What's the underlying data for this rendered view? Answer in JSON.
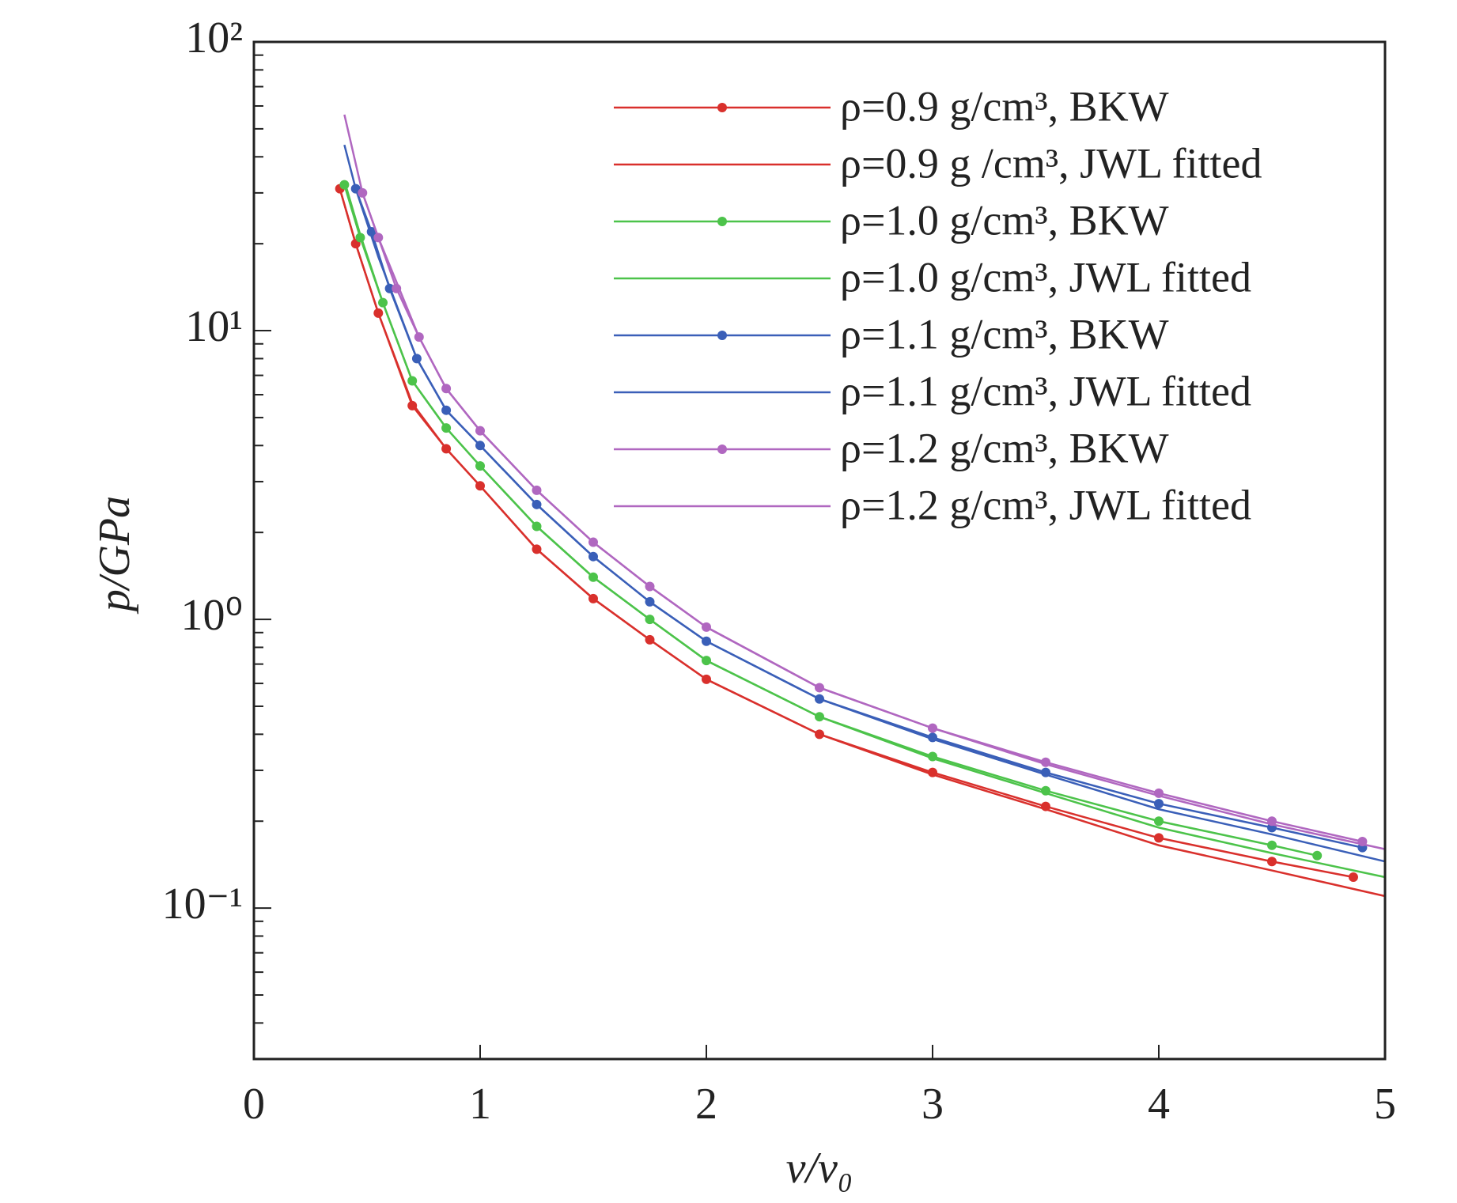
{
  "chart_data": {
    "type": "line",
    "xlabel": "v/v₀",
    "ylabel": "p/GPa",
    "xlim": [
      0,
      5
    ],
    "xticks": [
      0,
      1,
      2,
      3,
      4,
      5
    ],
    "ylim": [
      0.03,
      100
    ],
    "ylog": true,
    "yticks": [
      {
        "value": 0.1,
        "label": "10⁻¹"
      },
      {
        "value": 1,
        "label": "10⁰"
      },
      {
        "value": 10,
        "label": "10¹"
      },
      {
        "value": 100,
        "label": "10²"
      }
    ],
    "yminorticks": [
      0.04,
      0.05,
      0.06,
      0.07,
      0.08,
      0.09,
      0.2,
      0.3,
      0.4,
      0.5,
      0.6,
      0.7,
      0.8,
      0.9,
      2,
      3,
      4,
      5,
      6,
      7,
      8,
      9,
      20,
      30,
      40,
      50,
      60,
      70,
      80,
      90
    ],
    "legend": "upper right",
    "series": [
      {
        "name": "ρ=0.9 g/cm³, BKW",
        "color": "#d9302c",
        "marker": true,
        "x": [
          0.38,
          0.45,
          0.55,
          0.7,
          0.85,
          1,
          1.25,
          1.5,
          1.75,
          2,
          2.5,
          3,
          3.5,
          4,
          4.5,
          4.86
        ],
        "values": [
          31,
          20,
          11.5,
          5.5,
          3.9,
          2.9,
          1.75,
          1.18,
          0.85,
          0.62,
          0.4,
          0.295,
          0.225,
          0.175,
          0.145,
          0.128
        ]
      },
      {
        "name": "ρ=0.9 g /cm³, JWL fitted",
        "color": "#d9302c",
        "marker": false,
        "x": [
          0.38,
          0.45,
          0.55,
          0.7,
          0.85,
          1,
          1.25,
          1.5,
          1.75,
          2,
          2.5,
          3,
          3.5,
          4,
          4.5,
          5
        ],
        "values": [
          31,
          20,
          11.5,
          5.6,
          3.9,
          2.9,
          1.75,
          1.18,
          0.85,
          0.62,
          0.4,
          0.29,
          0.22,
          0.165,
          0.135,
          0.11
        ]
      },
      {
        "name": "ρ=1.0 g/cm³, BKW",
        "color": "#4cc34a",
        "marker": true,
        "x": [
          0.4,
          0.47,
          0.57,
          0.7,
          0.85,
          1,
          1.25,
          1.5,
          1.75,
          2,
          2.5,
          3,
          3.5,
          4,
          4.5,
          4.7
        ],
        "values": [
          32,
          21,
          12.5,
          6.7,
          4.6,
          3.4,
          2.1,
          1.4,
          1.0,
          0.72,
          0.46,
          0.335,
          0.255,
          0.2,
          0.165,
          0.152
        ]
      },
      {
        "name": "ρ=1.0 g/cm³, JWL fitted",
        "color": "#4cc34a",
        "marker": false,
        "x": [
          0.4,
          0.47,
          0.57,
          0.7,
          0.85,
          1,
          1.25,
          1.5,
          1.75,
          2,
          2.5,
          3,
          3.5,
          4,
          4.5,
          5
        ],
        "values": [
          33,
          21.5,
          12.5,
          6.7,
          4.6,
          3.4,
          2.1,
          1.4,
          1.0,
          0.72,
          0.46,
          0.33,
          0.25,
          0.19,
          0.155,
          0.128
        ]
      },
      {
        "name": "ρ=1.1 g/cm³, BKW",
        "color": "#3a5fb8",
        "marker": true,
        "x": [
          0.45,
          0.52,
          0.6,
          0.72,
          0.85,
          1,
          1.25,
          1.5,
          1.75,
          2,
          2.5,
          3,
          3.5,
          4,
          4.5,
          4.9
        ],
        "values": [
          31,
          22,
          14,
          8,
          5.3,
          4.0,
          2.5,
          1.65,
          1.15,
          0.84,
          0.53,
          0.39,
          0.295,
          0.23,
          0.19,
          0.162
        ]
      },
      {
        "name": "ρ=1.1 g/cm³, JWL fitted",
        "color": "#3a5fb8",
        "marker": false,
        "x": [
          0.4,
          0.45,
          0.55,
          0.72,
          0.85,
          1,
          1.25,
          1.5,
          1.75,
          2,
          2.5,
          3,
          3.5,
          4,
          4.5,
          5
        ],
        "values": [
          44,
          31,
          18,
          8,
          5.3,
          4.0,
          2.5,
          1.65,
          1.15,
          0.84,
          0.53,
          0.385,
          0.29,
          0.22,
          0.18,
          0.145
        ]
      },
      {
        "name": "ρ=1.2 g/cm³, BKW",
        "color": "#b067c0",
        "marker": true,
        "x": [
          0.48,
          0.55,
          0.63,
          0.73,
          0.85,
          1,
          1.25,
          1.5,
          1.75,
          2,
          2.5,
          3,
          3.5,
          4,
          4.5,
          4.9
        ],
        "values": [
          30,
          21,
          14,
          9.5,
          6.3,
          4.5,
          2.8,
          1.85,
          1.3,
          0.94,
          0.58,
          0.42,
          0.32,
          0.25,
          0.2,
          0.17
        ]
      },
      {
        "name": "ρ=1.2 g/cm³, JWL fitted",
        "color": "#b067c0",
        "marker": false,
        "x": [
          0.4,
          0.48,
          0.55,
          0.73,
          0.85,
          1,
          1.25,
          1.5,
          1.75,
          2,
          2.5,
          3,
          3.5,
          4,
          4.5,
          5
        ],
        "values": [
          56,
          30,
          21,
          9.5,
          6.3,
          4.5,
          2.8,
          1.85,
          1.3,
          0.94,
          0.58,
          0.42,
          0.315,
          0.245,
          0.195,
          0.16
        ]
      }
    ]
  }
}
